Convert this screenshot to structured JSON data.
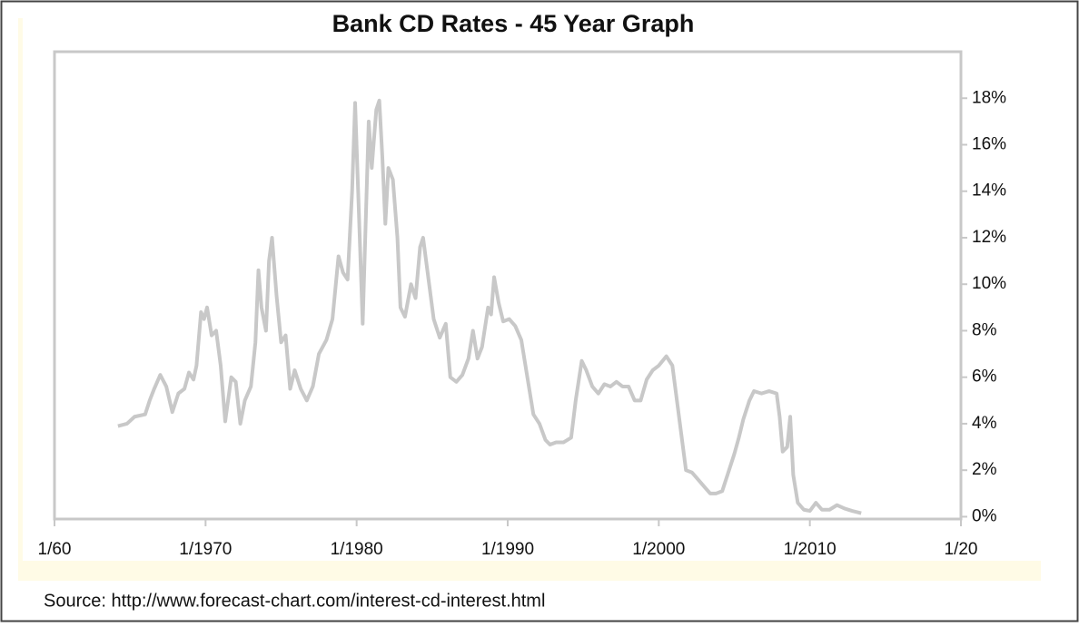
{
  "chart_data": {
    "type": "line",
    "title": "Bank CD Rates - 45 Year Graph",
    "source": "Source: http://www.forecast-chart.com/interest-cd-interest.html",
    "color": "#c8c8c8",
    "xlim": [
      1960,
      2020
    ],
    "xticks": [
      {
        "value": 1960,
        "label": "1/60"
      },
      {
        "value": 1970,
        "label": "1/1970"
      },
      {
        "value": 1980,
        "label": "1/1980"
      },
      {
        "value": 1990,
        "label": "1/1990"
      },
      {
        "value": 2000,
        "label": "1/2000"
      },
      {
        "value": 2010,
        "label": "1/2010"
      },
      {
        "value": 2020,
        "label": "1/20"
      }
    ],
    "ylim": [
      -0.1,
      20
    ],
    "yticks": [
      {
        "value": 0,
        "label": "0%"
      },
      {
        "value": 2,
        "label": "2%"
      },
      {
        "value": 4,
        "label": "4%"
      },
      {
        "value": 6,
        "label": "6%"
      },
      {
        "value": 8,
        "label": "8%"
      },
      {
        "value": 10,
        "label": "10%"
      },
      {
        "value": 12,
        "label": "12%"
      },
      {
        "value": 14,
        "label": "14%"
      },
      {
        "value": 16,
        "label": "16%"
      },
      {
        "value": 18,
        "label": "18%"
      }
    ],
    "y_axis_side": "right",
    "x": [
      1964.2,
      1964.8,
      1965.3,
      1966,
      1966.3,
      1966.6,
      1967,
      1967.4,
      1967.8,
      1968.2,
      1968.6,
      1968.9,
      1969.2,
      1969.4,
      1969.7,
      1969.9,
      1970.1,
      1970.4,
      1970.7,
      1971,
      1971.3,
      1971.7,
      1972,
      1972.3,
      1972.6,
      1973,
      1973.3,
      1973.5,
      1973.7,
      1974,
      1974.2,
      1974.4,
      1974.7,
      1975,
      1975.3,
      1975.6,
      1975.9,
      1976.3,
      1976.7,
      1977.1,
      1977.5,
      1978,
      1978.4,
      1978.8,
      1979.1,
      1979.4,
      1979.7,
      1979.9,
      1980.1,
      1980.4,
      1980.8,
      1981,
      1981.3,
      1981.5,
      1981.7,
      1981.9,
      1982.1,
      1982.4,
      1982.7,
      1982.9,
      1983.2,
      1983.6,
      1983.9,
      1984.2,
      1984.4,
      1984.8,
      1985.1,
      1985.5,
      1985.9,
      1986.2,
      1986.6,
      1987,
      1987.4,
      1987.7,
      1988,
      1988.3,
      1988.7,
      1988.9,
      1989.1,
      1989.4,
      1989.7,
      1990.1,
      1990.5,
      1990.9,
      1991.3,
      1991.7,
      1992.1,
      1992.5,
      1992.8,
      1993.2,
      1993.7,
      1994.2,
      1994.5,
      1994.9,
      1995.2,
      1995.6,
      1996,
      1996.4,
      1996.8,
      1997.2,
      1997.6,
      1998,
      1998.4,
      1998.8,
      1999.2,
      1999.6,
      2000,
      2000.5,
      2000.9,
      2001.2,
      2001.5,
      2001.8,
      2002.2,
      2002.6,
      2003,
      2003.4,
      2003.8,
      2004.2,
      2004.6,
      2005,
      2005.3,
      2005.6,
      2006,
      2006.3,
      2006.8,
      2007.3,
      2007.8,
      2008,
      2008.2,
      2008.5,
      2008.7,
      2008.9,
      2009.2,
      2009.6,
      2010,
      2010.4,
      2010.8,
      2011.3,
      2011.8,
      2012.3,
      2012.8,
      2013.4
    ],
    "values": [
      3.9,
      4.0,
      4.3,
      4.4,
      5.0,
      5.5,
      6.1,
      5.6,
      4.5,
      5.3,
      5.5,
      6.2,
      5.9,
      6.5,
      8.8,
      8.5,
      9.0,
      7.8,
      8.0,
      6.5,
      4.1,
      6.0,
      5.8,
      4.0,
      5.0,
      5.6,
      7.5,
      10.6,
      9.0,
      8.0,
      11.0,
      12.0,
      9.5,
      7.5,
      7.8,
      5.5,
      6.3,
      5.5,
      5.0,
      5.6,
      7.0,
      7.6,
      8.5,
      11.2,
      10.5,
      10.2,
      14.0,
      17.8,
      14.0,
      8.3,
      17.0,
      15.0,
      17.5,
      17.9,
      15.5,
      12.6,
      15.0,
      14.5,
      12.0,
      9.0,
      8.6,
      10.0,
      9.4,
      11.6,
      12.0,
      10.0,
      8.5,
      7.7,
      8.3,
      6.0,
      5.8,
      6.1,
      6.8,
      8.0,
      6.8,
      7.3,
      9.0,
      8.7,
      10.3,
      9.2,
      8.4,
      8.5,
      8.2,
      7.6,
      6.0,
      4.4,
      4.0,
      3.3,
      3.1,
      3.2,
      3.2,
      3.4,
      5.0,
      6.7,
      6.3,
      5.6,
      5.3,
      5.7,
      5.6,
      5.8,
      5.6,
      5.6,
      5.0,
      5.0,
      5.9,
      6.3,
      6.5,
      6.9,
      6.5,
      5.0,
      3.5,
      2.0,
      1.9,
      1.6,
      1.3,
      1.0,
      1.0,
      1.1,
      1.9,
      2.7,
      3.4,
      4.2,
      5.0,
      5.4,
      5.3,
      5.4,
      5.3,
      4.3,
      2.8,
      3.0,
      4.3,
      1.8,
      0.6,
      0.3,
      0.25,
      0.6,
      0.3,
      0.3,
      0.5,
      0.35,
      0.25,
      0.15
    ]
  }
}
